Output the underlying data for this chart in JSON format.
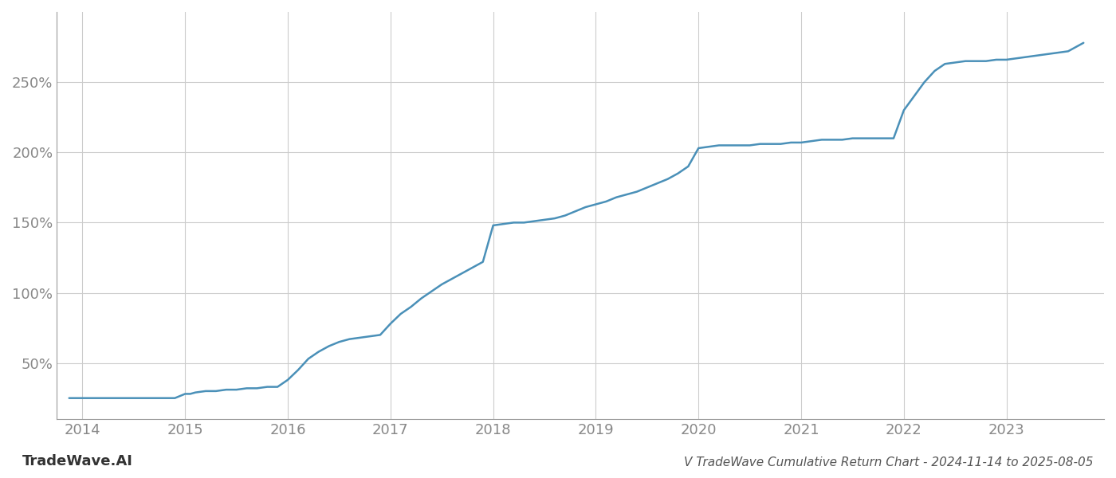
{
  "title": "V TradeWave Cumulative Return Chart - 2024-11-14 to 2025-08-05",
  "watermark": "TradeWave.AI",
  "line_color": "#4a90b8",
  "background_color": "#ffffff",
  "grid_color": "#cccccc",
  "x_years": [
    2014,
    2015,
    2016,
    2017,
    2018,
    2019,
    2020,
    2021,
    2022,
    2023
  ],
  "x_data": [
    2013.87,
    2013.95,
    2014.0,
    2014.1,
    2014.2,
    2014.3,
    2014.4,
    2014.5,
    2014.6,
    2014.7,
    2014.8,
    2014.9,
    2015.0,
    2015.05,
    2015.1,
    2015.2,
    2015.3,
    2015.4,
    2015.5,
    2015.6,
    2015.7,
    2015.8,
    2015.9,
    2016.0,
    2016.1,
    2016.2,
    2016.3,
    2016.4,
    2016.5,
    2016.6,
    2016.7,
    2016.8,
    2016.9,
    2017.0,
    2017.1,
    2017.2,
    2017.3,
    2017.4,
    2017.5,
    2017.6,
    2017.7,
    2017.8,
    2017.9,
    2018.0,
    2018.1,
    2018.2,
    2018.3,
    2018.4,
    2018.5,
    2018.6,
    2018.7,
    2018.8,
    2018.9,
    2019.0,
    2019.1,
    2019.2,
    2019.3,
    2019.4,
    2019.5,
    2019.6,
    2019.7,
    2019.8,
    2019.9,
    2020.0,
    2020.1,
    2020.2,
    2020.3,
    2020.4,
    2020.5,
    2020.6,
    2020.7,
    2020.8,
    2020.9,
    2021.0,
    2021.1,
    2021.2,
    2021.3,
    2021.4,
    2021.5,
    2021.6,
    2021.7,
    2021.8,
    2021.9,
    2022.0,
    2022.1,
    2022.2,
    2022.3,
    2022.4,
    2022.5,
    2022.6,
    2022.7,
    2022.8,
    2022.9,
    2023.0,
    2023.1,
    2023.2,
    2023.3,
    2023.4,
    2023.5,
    2023.6,
    2023.75
  ],
  "y_data": [
    25,
    25,
    25,
    25,
    25,
    25,
    25,
    25,
    25,
    25,
    25,
    25,
    28,
    28,
    29,
    30,
    30,
    31,
    31,
    32,
    32,
    33,
    33,
    38,
    45,
    53,
    58,
    62,
    65,
    67,
    68,
    69,
    70,
    78,
    85,
    90,
    96,
    101,
    106,
    110,
    114,
    118,
    122,
    148,
    149,
    150,
    150,
    151,
    152,
    153,
    155,
    158,
    161,
    163,
    165,
    168,
    170,
    172,
    175,
    178,
    181,
    185,
    190,
    203,
    204,
    205,
    205,
    205,
    205,
    206,
    206,
    206,
    207,
    207,
    208,
    209,
    209,
    209,
    210,
    210,
    210,
    210,
    210,
    230,
    240,
    250,
    258,
    263,
    264,
    265,
    265,
    265,
    266,
    266,
    267,
    268,
    269,
    270,
    271,
    272,
    278
  ],
  "ylim": [
    10,
    300
  ],
  "yticks": [
    50,
    100,
    150,
    200,
    250
  ],
  "xlim": [
    2013.75,
    2023.95
  ],
  "title_fontsize": 11,
  "watermark_fontsize": 13,
  "tick_fontsize": 13,
  "tick_color": "#888888",
  "title_color": "#555555",
  "watermark_color": "#333333",
  "line_width": 1.8
}
